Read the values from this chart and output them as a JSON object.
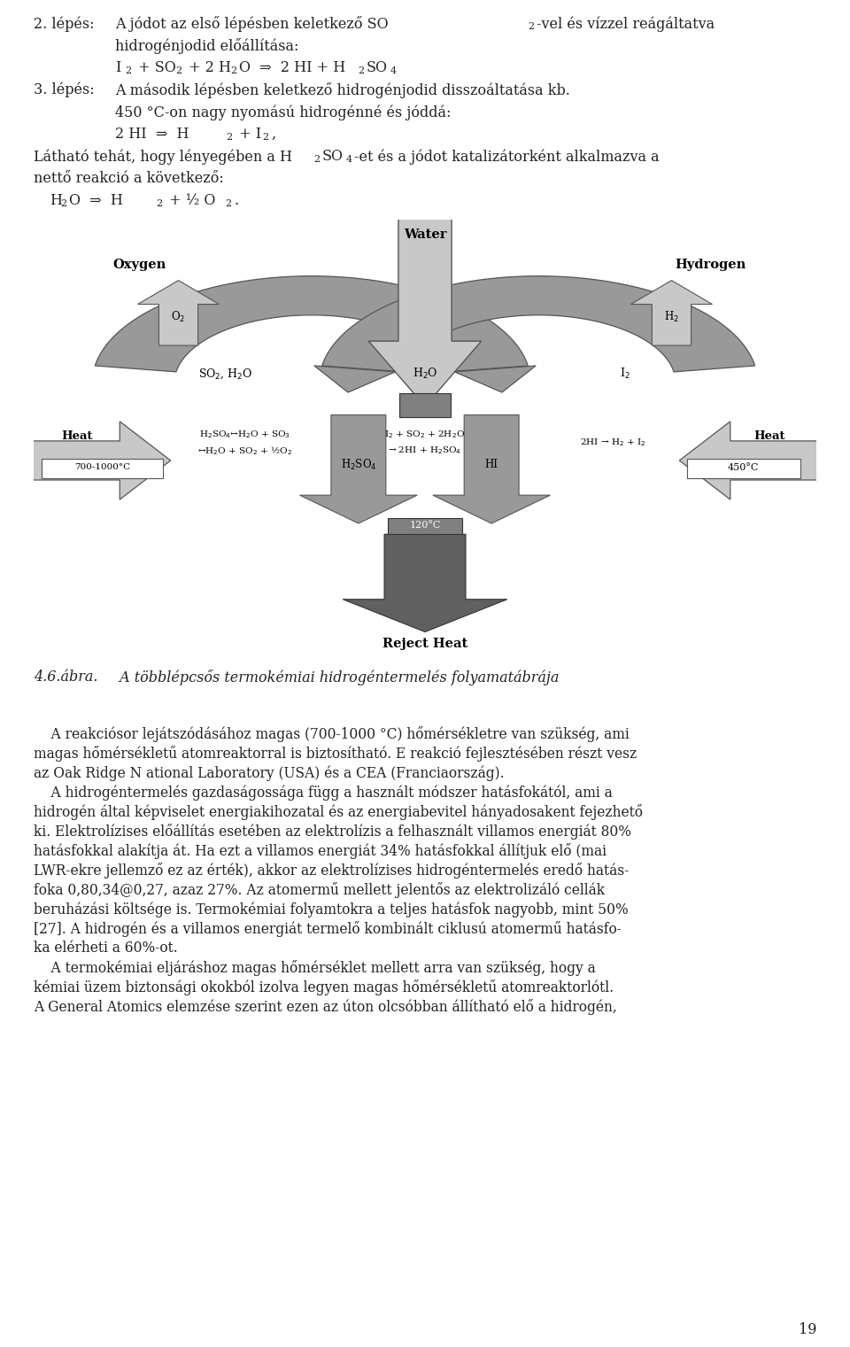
{
  "bg_color": "#ffffff",
  "text_color": "#222222",
  "page_width": 9.6,
  "page_height": 15.21,
  "gray_light": "#c8c8c8",
  "gray_mid": "#999999",
  "gray_dark": "#606060",
  "gray_box": "#808080",
  "gray_arrow_dark": "#555555",
  "body_text": [
    "    A reakciósor lejátszódásához magas (700-1000 °C) hőmérsékletre van szükség, ami",
    "magas hőmérsékletű atomreaktorral is biztosítható. E reakció fejlesztésében részt vesz",
    "az Oak Ridge N ational Laboratory (USA) és a CEA (Franciaország).",
    "    A hidrogéntermelés gazdaságossága függ a használt módszer hatásfokától, ami a",
    "hidrogén által képviselet energiakihozatal és az energiabevitel hányadosakent fejezhető",
    "ki. Elektrolízises előállítás esetében az elektrolízis a felhasznált villamos energiát 80%",
    "hatásfokkal alakítja át. Ha ezt a villamos energiát 34% hatásfokkal állítjuk elő (mai",
    "LWR-ekre jellemző ez az érték), akkor az elektrolízises hidrogéntermelés eredő hatás-",
    "foka 0,80,34@0,27, azaz 27%. Az atomermű mellett jelentős az elektrolizáló cellák",
    "beruházási költsége is. Termokémiai folyamtokra a teljes hatásfok nagyobb, mint 50%",
    "[27]. A hidrogén és a villamos energiát termelő kombinált ciklusú atomermű hatásfo-",
    "ka elérheti a 60%-ot.",
    "    A termokémiai eljáráshoz magas hőmérséklet mellett arra van szükség, hogy a",
    "kémiai üzem biztonsági okokból izolva legyen magas hőmérsékletű atomreaktorlótl.",
    "A General Atomics elemzése szerint ezen az úton olcsóbban állítható elő a hidrogén,"
  ],
  "page_number": "19"
}
